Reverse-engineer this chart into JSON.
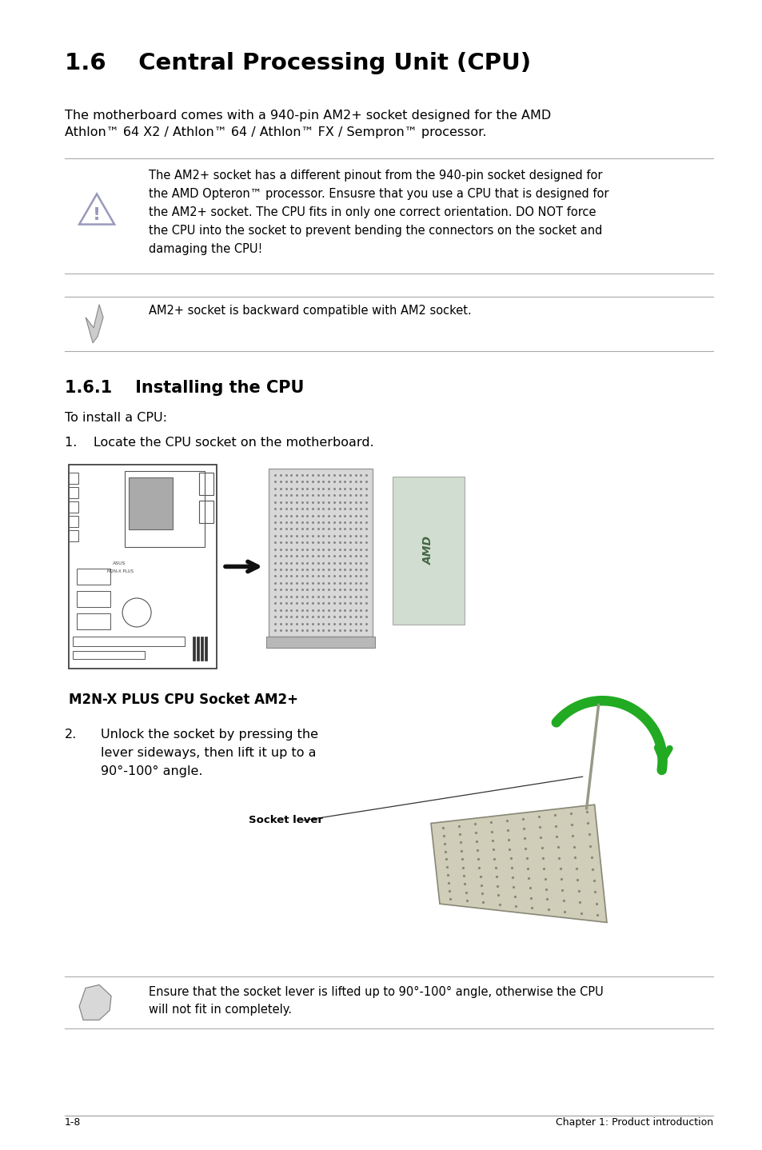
{
  "bg_color": "#ffffff",
  "lm": 0.085,
  "rm": 0.935,
  "title": "1.6    Central Processing Unit (CPU)",
  "title_fontsize": 21,
  "body_text_1": "The motherboard comes with a 940-pin AM2+ socket designed for the AMD\nAthlon™ 64 X2 / Athlon™ 64 / Athlon™ FX / Sempron™ processor.",
  "warning_text": "The AM2+ socket has a different pinout from the 940-pin socket designed for\nthe AMD Opteron™ processor. Ensusre that you use a CPU that is designed for\nthe AM2+ socket. The CPU fits in only one correct orientation. DO NOT force\nthe CPU into the socket to prevent bending the connectors on the socket and\ndamaging the CPU!",
  "note_text": "AM2+ socket is backward compatible with AM2 socket.",
  "section_title": "1.6.1    Installing the CPU",
  "install_text": "To install a CPU:",
  "step1_text": "1.    Locate the CPU socket on the motherboard.",
  "caption_text": "M2N-X PLUS CPU Socket AM2+",
  "step2_num": "2.",
  "step2_text": "Unlock the socket by pressing the\nlever sideways, then lift it up to a\n90°-100° angle.",
  "socket_lever_label": "Socket lever",
  "note2_text": "Ensure that the socket lever is lifted up to 90°-100° angle, otherwise the CPU\nwill not fit in completely.",
  "footer_left": "1-8",
  "footer_right": "Chapter 1: Product introduction",
  "sep_color": "#aaaaaa",
  "text_color": "#000000",
  "body_fontsize": 11.5,
  "small_fontsize": 10.5,
  "icon_color": "#9999bb"
}
